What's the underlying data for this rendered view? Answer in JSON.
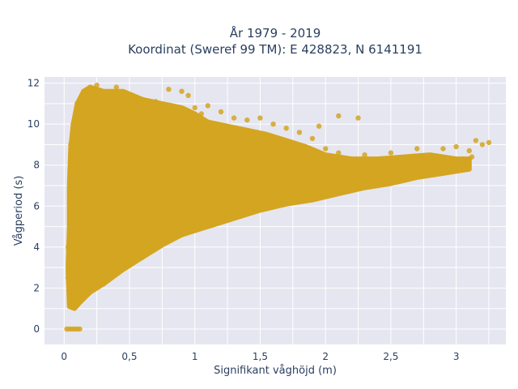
{
  "chart_data": {
    "type": "scatter",
    "title_line1": "År 1979 - 2019",
    "title_line2": "Koordinat (Sweref 99 TM): E 428823, N 6141191",
    "xlabel": "Signifikant våghöjd (m)",
    "ylabel": "Vågperiod (s)",
    "xlim": [
      -0.15,
      3.38
    ],
    "ylim": [
      -0.75,
      12.3
    ],
    "xticks": [
      0,
      0.5,
      1,
      1.5,
      2,
      2.5,
      3
    ],
    "xtick_labels": [
      "0",
      "0,5",
      "1",
      "1,5",
      "2",
      "2,5",
      "3"
    ],
    "yticks": [
      0,
      2,
      4,
      6,
      8,
      10,
      12
    ],
    "ytick_labels": [
      "0",
      "2",
      "4",
      "6",
      "8",
      "10",
      "12"
    ],
    "grid": true,
    "marker_color": "#d4a520",
    "background_color": "#e5e6f0",
    "points": [
      [
        0.02,
        0
      ],
      [
        0.04,
        0
      ],
      [
        0.06,
        0
      ],
      [
        0.08,
        0
      ],
      [
        0.1,
        0
      ],
      [
        0.12,
        0
      ],
      [
        0.05,
        1.3
      ],
      [
        0.08,
        1.2
      ],
      [
        0.12,
        1.4
      ],
      [
        0.15,
        1.6
      ],
      [
        0.2,
        1.8
      ],
      [
        0.3,
        2.2
      ],
      [
        0.4,
        2.7
      ],
      [
        0.5,
        3.1
      ],
      [
        0.6,
        3.5
      ],
      [
        0.7,
        3.9
      ],
      [
        0.8,
        4.3
      ],
      [
        0.9,
        4.6
      ],
      [
        1.0,
        4.9
      ],
      [
        1.2,
        5.3
      ],
      [
        1.4,
        5.7
      ],
      [
        1.6,
        6.0
      ],
      [
        1.8,
        6.3
      ],
      [
        2.0,
        6.5
      ],
      [
        2.2,
        6.8
      ],
      [
        2.4,
        7.0
      ],
      [
        2.6,
        7.3
      ],
      [
        2.8,
        7.6
      ],
      [
        3.0,
        7.9
      ],
      [
        3.1,
        8.3
      ],
      [
        0.03,
        2.5
      ],
      [
        0.03,
        4.0
      ],
      [
        0.04,
        6.0
      ],
      [
        0.05,
        8.0
      ],
      [
        0.05,
        9.0
      ],
      [
        0.07,
        10.0
      ],
      [
        0.1,
        11.0
      ],
      [
        0.15,
        11.6
      ],
      [
        0.2,
        11.8
      ],
      [
        0.25,
        11.9
      ],
      [
        0.3,
        11.5
      ],
      [
        0.4,
        11.8
      ],
      [
        0.5,
        11.4
      ],
      [
        0.6,
        11.2
      ],
      [
        0.7,
        11.1
      ],
      [
        0.8,
        11.7
      ],
      [
        0.9,
        11.6
      ],
      [
        1.0,
        10.8
      ],
      [
        1.1,
        10.9
      ],
      [
        1.2,
        10.6
      ],
      [
        1.3,
        10.3
      ],
      [
        1.4,
        10.2
      ],
      [
        1.5,
        10.3
      ],
      [
        1.6,
        10.0
      ],
      [
        1.7,
        9.8
      ],
      [
        1.8,
        9.6
      ],
      [
        1.9,
        9.3
      ],
      [
        2.0,
        8.8
      ],
      [
        2.1,
        8.6
      ],
      [
        2.3,
        8.5
      ],
      [
        2.5,
        8.6
      ],
      [
        2.7,
        8.8
      ],
      [
        2.9,
        8.8
      ],
      [
        3.0,
        8.9
      ],
      [
        3.1,
        8.7
      ],
      [
        3.2,
        9.0
      ],
      [
        3.25,
        9.1
      ],
      [
        3.15,
        9.2
      ],
      [
        3.05,
        8.3
      ],
      [
        3.12,
        8.4
      ],
      [
        2.25,
        10.3
      ],
      [
        2.1,
        10.4
      ],
      [
        1.95,
        9.9
      ],
      [
        1.05,
        10.5
      ],
      [
        0.95,
        11.4
      ],
      [
        0.55,
        11.2
      ]
    ]
  }
}
